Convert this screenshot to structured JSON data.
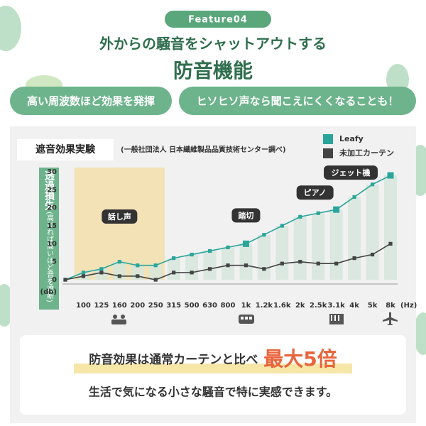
{
  "header": {
    "badge": "Feature04",
    "title": "外からの騒音をシャットアウトする",
    "subtitle": "防音機能"
  },
  "points": [
    "高い周波数ほど効果を発揮",
    "ヒソヒソ声なら聞こえにくくなることも！"
  ],
  "chart_data": {
    "type": "line",
    "title": "遮音効果実験",
    "source": "(一般社団法人 日本繊維製品品質技術センター調べ)",
    "y_label": "透過損失",
    "y_label_note": "(高ければ高いほど音を遮断)",
    "y_unit": "(db)",
    "x_unit": "(Hz)",
    "categories": [
      null,
      "100",
      "125",
      "160",
      "200",
      "250",
      "315",
      "500",
      "630",
      "800",
      "1k",
      "1.2k",
      "1.6k",
      "2k",
      "2.5k",
      "3.1k",
      "4k",
      "5k",
      "8k"
    ],
    "series": [
      {
        "name": "Leafy",
        "color": "#2aa59b",
        "values": [
          0,
          2,
          3,
          5,
          4,
          4,
          6,
          7,
          8,
          9,
          10,
          12.5,
          15,
          17.5,
          18.5,
          19.5,
          23,
          26.5,
          29
        ]
      },
      {
        "name": "未加工カーテン",
        "color": "#444444",
        "values": [
          0,
          1,
          2,
          1,
          1,
          0,
          2,
          2,
          3,
          4,
          4,
          3,
          4.5,
          5,
          4.5,
          4.5,
          6,
          7,
          10
        ]
      }
    ],
    "ylim": [
      0,
      30
    ],
    "yticks": [
      0,
      5,
      10,
      15,
      20,
      25,
      30
    ],
    "grid": false,
    "highlight": {
      "text": "話し声",
      "from": "100",
      "to": "250",
      "color": "#f3e2b6"
    },
    "annotations": [
      {
        "text": "踏切",
        "at": "1k"
      },
      {
        "text": "ピアノ",
        "at": "3.1k"
      },
      {
        "text": "ジェット機",
        "at": "8k"
      }
    ]
  },
  "footer": {
    "lead": "防音効果は通常カーテンと比べ",
    "emphasis": "最大5倍",
    "note": "生活で気になる小さな騒音で特に実感できます。"
  }
}
